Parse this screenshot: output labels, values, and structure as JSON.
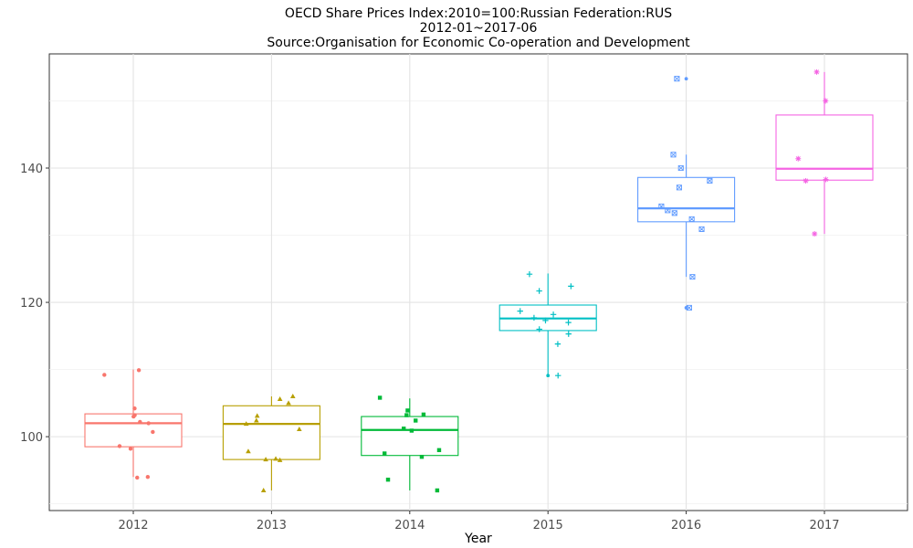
{
  "chart_data": {
    "type": "box",
    "title_lines": [
      "OECD Share Prices Index:2010=100:Russian Federation:RUS",
      "2012-01~2017-06",
      "Source:Organisation for Economic Co-operation and Development"
    ],
    "xlabel": "Year",
    "ylabel": "",
    "ylim": [
      89,
      157
    ],
    "yticks": [
      100,
      120,
      140
    ],
    "grid": true,
    "legend": "none",
    "categories": [
      "2012",
      "2013",
      "2014",
      "2015",
      "2016",
      "2017"
    ],
    "boxes": [
      {
        "category": "2012",
        "color": "#F8766D",
        "shape": "circle",
        "min": 94,
        "q1": 98.5,
        "median": 102,
        "q3": 103.4,
        "max": 110,
        "outliers": [],
        "points": [
          94,
          93.9,
          98.2,
          98.6,
          100.7,
          102,
          103,
          103.2,
          104.2,
          109.2,
          109.9,
          102.2
        ]
      },
      {
        "category": "2013",
        "color": "#B79F00",
        "shape": "triangle",
        "min": 92,
        "q1": 96.6,
        "median": 101.9,
        "q3": 104.6,
        "max": 106,
        "outliers": [],
        "points": [
          92,
          96.6,
          96.7,
          97.8,
          96.5,
          101.1,
          102.4,
          103.1,
          105,
          106,
          105.6,
          101.9
        ]
      },
      {
        "category": "2014",
        "color": "#00BA38",
        "shape": "square",
        "min": 92,
        "q1": 97.2,
        "median": 101,
        "q3": 103,
        "max": 105.7,
        "outliers": [],
        "points": [
          92,
          93.6,
          97,
          97.5,
          98,
          100.9,
          101.2,
          102.4,
          103.2,
          103.9,
          105.8,
          103.3
        ]
      },
      {
        "category": "2015",
        "color": "#00BFC4",
        "shape": "plus",
        "min": 109,
        "q1": 115.8,
        "median": 117.6,
        "q3": 119.6,
        "max": 124.3,
        "outliers": [
          109.1,
          109.1
        ],
        "points": [
          113.8,
          115.3,
          116,
          117,
          117.3,
          117.7,
          118.2,
          118.7,
          121.7,
          122.4,
          124.2
        ]
      },
      {
        "category": "2016",
        "color": "#619CFF",
        "shape": "square-cross",
        "min": 123.8,
        "q1": 132,
        "median": 134,
        "q3": 138.6,
        "max": 142,
        "outliers": [
          119.2,
          119.2,
          153.3,
          153.3
        ],
        "points": [
          123.8,
          130.9,
          132.4,
          133.3,
          133.7,
          134.3,
          137.1,
          138.1,
          140,
          142
        ]
      },
      {
        "category": "2017",
        "color": "#F564E3",
        "shape": "asterisk",
        "min": 130.2,
        "q1": 138.2,
        "median": 139.9,
        "q3": 147.9,
        "max": 154.3,
        "outliers": [],
        "points": [
          130.2,
          138.1,
          138.3,
          141.4,
          150,
          154.3
        ]
      }
    ]
  }
}
